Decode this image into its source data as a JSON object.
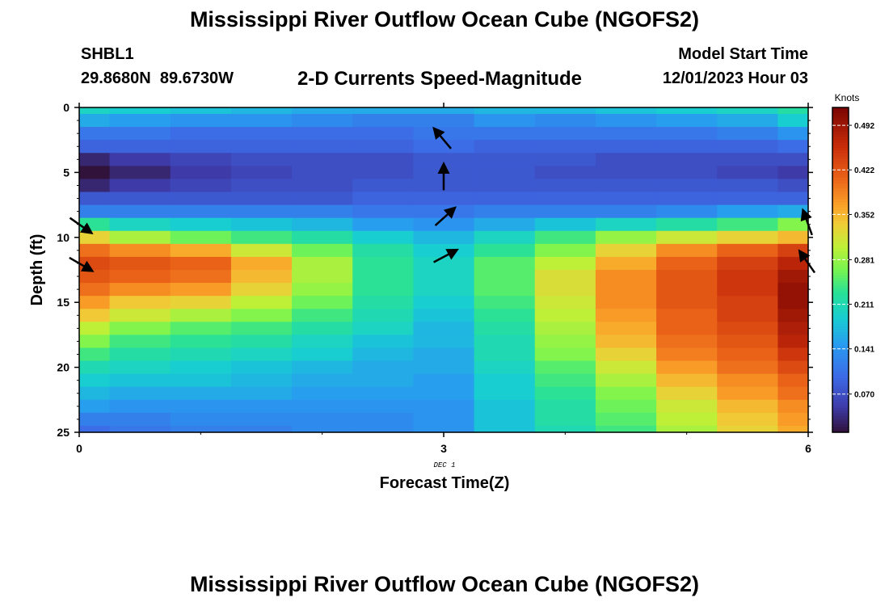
{
  "header": {
    "title": "Mississippi River Outflow Ocean Cube (NGOFS2)",
    "station": "SHBL1",
    "coords": "29.8680N  89.6730W",
    "subtitle": "2-D Currents Speed-Magnitude",
    "start_label": "Model Start Time",
    "start_value": "12/01/2023 Hour 03"
  },
  "footer": {
    "title": "Mississippi River Outflow Ocean Cube (NGOFS2)"
  },
  "chart_data": {
    "type": "heatmap",
    "title": "2-D Currents Speed-Magnitude",
    "xlabel": "Forecast Time(Z)",
    "ylabel": "Depth (ft)",
    "date_label": "DEC 1",
    "x_ticks": [
      "0",
      "3",
      "6"
    ],
    "y_ticks": [
      "0",
      "5",
      "10",
      "15",
      "20",
      "25"
    ],
    "xlim": [
      0,
      6
    ],
    "ylim": [
      0,
      25
    ],
    "x_columns": [
      0.0,
      0.5,
      1.0,
      1.5,
      2.0,
      2.5,
      3.0,
      3.5,
      4.0,
      4.5,
      5.0,
      5.5,
      6.0
    ],
    "colorbar": {
      "unit": "Knots",
      "labels": [
        "0.492",
        "0.422",
        "0.352",
        "0.281",
        "0.211",
        "0.141",
        "0.070"
      ],
      "min": 0.01,
      "max": 0.52
    },
    "rows": [
      {
        "depth": 0.0,
        "values": [
          0.2,
          0.19,
          0.18,
          0.17,
          0.16,
          0.16,
          0.16,
          0.17,
          0.17,
          0.18,
          0.19,
          0.2,
          0.22
        ]
      },
      {
        "depth": 1.0,
        "values": [
          0.16,
          0.15,
          0.14,
          0.14,
          0.13,
          0.12,
          0.12,
          0.14,
          0.13,
          0.14,
          0.15,
          0.16,
          0.19
        ]
      },
      {
        "depth": 2.0,
        "values": [
          0.11,
          0.11,
          0.1,
          0.1,
          0.1,
          0.1,
          0.11,
          0.11,
          0.11,
          0.11,
          0.11,
          0.12,
          0.14
        ]
      },
      {
        "depth": 3.0,
        "values": [
          0.09,
          0.09,
          0.09,
          0.09,
          0.09,
          0.09,
          0.1,
          0.09,
          0.09,
          0.09,
          0.09,
          0.09,
          0.1
        ]
      },
      {
        "depth": 4.0,
        "values": [
          0.03,
          0.05,
          0.06,
          0.07,
          0.07,
          0.07,
          0.08,
          0.08,
          0.08,
          0.07,
          0.07,
          0.07,
          0.07
        ]
      },
      {
        "depth": 5.0,
        "values": [
          0.01,
          0.03,
          0.05,
          0.06,
          0.07,
          0.07,
          0.08,
          0.08,
          0.07,
          0.07,
          0.07,
          0.06,
          0.05
        ]
      },
      {
        "depth": 6.0,
        "values": [
          0.03,
          0.05,
          0.06,
          0.07,
          0.07,
          0.08,
          0.08,
          0.08,
          0.08,
          0.08,
          0.08,
          0.08,
          0.07
        ]
      },
      {
        "depth": 7.0,
        "values": [
          0.08,
          0.08,
          0.08,
          0.08,
          0.08,
          0.09,
          0.09,
          0.09,
          0.09,
          0.09,
          0.09,
          0.09,
          0.09
        ]
      },
      {
        "depth": 8.0,
        "values": [
          0.12,
          0.12,
          0.12,
          0.12,
          0.12,
          0.11,
          0.11,
          0.12,
          0.12,
          0.12,
          0.13,
          0.15,
          0.16
        ]
      },
      {
        "depth": 9.0,
        "values": [
          0.23,
          0.2,
          0.19,
          0.18,
          0.17,
          0.15,
          0.14,
          0.16,
          0.18,
          0.2,
          0.22,
          0.24,
          0.27
        ]
      },
      {
        "depth": 10.0,
        "values": [
          0.33,
          0.29,
          0.26,
          0.24,
          0.22,
          0.19,
          0.17,
          0.2,
          0.24,
          0.28,
          0.31,
          0.33,
          0.35
        ]
      },
      {
        "depth": 11.0,
        "values": [
          0.4,
          0.38,
          0.36,
          0.31,
          0.26,
          0.22,
          0.19,
          0.23,
          0.27,
          0.33,
          0.38,
          0.41,
          0.44
        ]
      },
      {
        "depth": 12.0,
        "values": [
          0.43,
          0.42,
          0.41,
          0.36,
          0.29,
          0.23,
          0.2,
          0.25,
          0.3,
          0.36,
          0.41,
          0.44,
          0.47
        ]
      },
      {
        "depth": 13.0,
        "values": [
          0.42,
          0.41,
          0.4,
          0.35,
          0.29,
          0.23,
          0.2,
          0.25,
          0.32,
          0.38,
          0.42,
          0.45,
          0.49
        ]
      },
      {
        "depth": 14.0,
        "values": [
          0.4,
          0.38,
          0.37,
          0.33,
          0.28,
          0.23,
          0.2,
          0.25,
          0.32,
          0.38,
          0.42,
          0.45,
          0.5
        ]
      },
      {
        "depth": 15.0,
        "values": [
          0.37,
          0.34,
          0.33,
          0.3,
          0.26,
          0.22,
          0.19,
          0.24,
          0.31,
          0.38,
          0.42,
          0.44,
          0.5
        ]
      },
      {
        "depth": 16.0,
        "values": [
          0.34,
          0.31,
          0.29,
          0.27,
          0.24,
          0.21,
          0.18,
          0.23,
          0.3,
          0.37,
          0.41,
          0.44,
          0.49
        ]
      },
      {
        "depth": 17.0,
        "values": [
          0.3,
          0.27,
          0.25,
          0.24,
          0.22,
          0.2,
          0.17,
          0.22,
          0.29,
          0.36,
          0.41,
          0.43,
          0.48
        ]
      },
      {
        "depth": 18.0,
        "values": [
          0.27,
          0.24,
          0.23,
          0.22,
          0.2,
          0.18,
          0.17,
          0.21,
          0.28,
          0.35,
          0.4,
          0.42,
          0.47
        ]
      },
      {
        "depth": 19.0,
        "values": [
          0.24,
          0.22,
          0.21,
          0.2,
          0.19,
          0.17,
          0.16,
          0.21,
          0.27,
          0.33,
          0.39,
          0.41,
          0.45
        ]
      },
      {
        "depth": 20.0,
        "values": [
          0.21,
          0.2,
          0.19,
          0.18,
          0.17,
          0.16,
          0.16,
          0.2,
          0.25,
          0.31,
          0.37,
          0.4,
          0.43
        ]
      },
      {
        "depth": 21.0,
        "values": [
          0.19,
          0.18,
          0.18,
          0.17,
          0.16,
          0.16,
          0.15,
          0.19,
          0.24,
          0.29,
          0.35,
          0.38,
          0.41
        ]
      },
      {
        "depth": 22.0,
        "values": [
          0.17,
          0.16,
          0.16,
          0.16,
          0.15,
          0.15,
          0.15,
          0.19,
          0.23,
          0.27,
          0.33,
          0.37,
          0.4
        ]
      },
      {
        "depth": 23.0,
        "values": [
          0.15,
          0.14,
          0.14,
          0.14,
          0.14,
          0.14,
          0.14,
          0.18,
          0.22,
          0.26,
          0.31,
          0.35,
          0.38
        ]
      },
      {
        "depth": 24.0,
        "values": [
          0.12,
          0.12,
          0.13,
          0.13,
          0.13,
          0.13,
          0.14,
          0.18,
          0.22,
          0.25,
          0.3,
          0.34,
          0.37
        ]
      },
      {
        "depth": 25.0,
        "values": [
          0.1,
          0.11,
          0.12,
          0.12,
          0.13,
          0.13,
          0.14,
          0.18,
          0.21,
          0.24,
          0.29,
          0.33,
          0.36
        ]
      }
    ],
    "vectors": [
      {
        "time": 0,
        "depth": 9.0,
        "direction_deg": 125
      },
      {
        "time": 0,
        "depth": 12.0,
        "direction_deg": 120
      },
      {
        "time": 3,
        "depth": 2.5,
        "direction_deg": 320
      },
      {
        "time": 3,
        "depth": 5.5,
        "direction_deg": 0
      },
      {
        "time": 3,
        "depth": 8.5,
        "direction_deg": 48
      },
      {
        "time": 3,
        "depth": 11.5,
        "direction_deg": 62
      },
      {
        "time": 6,
        "depth": 9.0,
        "direction_deg": 340
      },
      {
        "time": 6,
        "depth": 12.0,
        "direction_deg": 325
      }
    ]
  }
}
